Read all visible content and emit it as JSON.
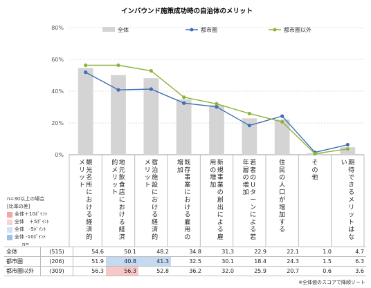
{
  "chart_data": {
    "type": "bar",
    "title": "インバウンド施策成功時の自治体のメリット",
    "ylim": [
      0,
      80
    ],
    "yticks": [
      "0%",
      "20%",
      "40%",
      "60%",
      "80%"
    ],
    "categories": [
      "観光名所における経済的メリット",
      "地元飲食店における経済的メリット",
      "宿泊施設における経済的メリット",
      "既存事業における雇用の増加",
      "新規事業の創出による雇用の増加",
      "若者のUターンによる若年層の増加",
      "住民の人口が増加する",
      "その他",
      "期待できるメリットはない"
    ],
    "category_labels": [
      "観光名所における経済的メリット",
      "地元飲食店における経済的メリット",
      "宿泊施設における経済的メリット",
      "既存事業における雇用の増加",
      "新規事業の創出による雇用の増加",
      "若者のUターンによる若年層の増加",
      "住民の人口が増加する",
      "その他",
      "期待できるメリットはない"
    ],
    "series": [
      {
        "name": "全体",
        "type": "bar",
        "color": "#d4d4d4",
        "n": "(515)",
        "values": [
          54.6,
          50.1,
          48.2,
          34.8,
          31.3,
          22.9,
          22.1,
          1.0,
          4.7
        ]
      },
      {
        "name": "都市圏",
        "type": "line",
        "color": "#3f6fb5",
        "n": "(206)",
        "values": [
          51.9,
          40.8,
          41.3,
          32.5,
          30.1,
          18.4,
          24.3,
          1.5,
          6.3
        ]
      },
      {
        "name": "都市圏以外",
        "type": "line",
        "color": "#8db33a",
        "n": "(309)",
        "values": [
          56.3,
          56.3,
          52.8,
          36.2,
          32.0,
          25.9,
          20.7,
          0.6,
          3.6
        ]
      }
    ],
    "highlights": {
      "1": {
        "0": "",
        "1": "#c5d9f1",
        "2": "#f8c8c8"
      },
      "2": {
        "1": "#c5d9f1"
      }
    }
  },
  "notes": {
    "line1": "n=30以上の場合",
    "line2": "[比率の差]",
    "legend": [
      {
        "label": "全体＋10ﾎﾟｲﾝﾄ",
        "color": "#f4a6a6"
      },
      {
        "label": "全体　＋5ﾎﾟｲﾝﾄ",
        "color": "#fbd3d3"
      },
      {
        "label": "全体　-5ﾎﾟｲﾝﾄ",
        "color": "#d3e3f5"
      },
      {
        "label": "全体 -10ﾎﾟｲﾝﾄ",
        "color": "#9fc1e8"
      }
    ],
    "n_label": "n="
  },
  "footnote": "※全体値のスコアで降順ソート"
}
